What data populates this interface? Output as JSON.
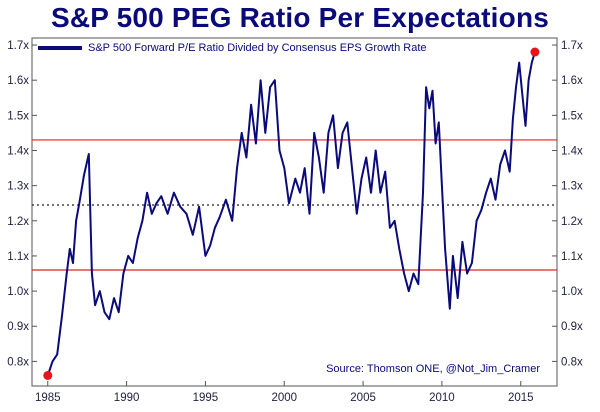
{
  "chart_data": {
    "type": "line",
    "title": "S&P 500 PEG Ratio Per Expectations",
    "legend": [
      "S&P 500 Forward P/E Ratio Divided by Consensus  EPS Growth Rate"
    ],
    "source": "Source: Thomson ONE, @Not_Jim_Cramer",
    "xlim": [
      1984.0,
      2017.3
    ],
    "ylim": [
      0.73,
      1.72
    ],
    "x_ticks": [
      1985,
      1990,
      1995,
      2000,
      2005,
      2010,
      2015
    ],
    "x_tick_labels": [
      "1985",
      "1990",
      "1995",
      "2000",
      "2005",
      "2010",
      "2015"
    ],
    "y_ticks": [
      0.8,
      0.9,
      1.0,
      1.1,
      1.2,
      1.3,
      1.4,
      1.5,
      1.6,
      1.7
    ],
    "y_tick_labels": [
      "0.8x",
      "0.9x",
      "1.0x",
      "1.1x",
      "1.2x",
      "1.3x",
      "1.4x",
      "1.5x",
      "1.6x",
      "1.7x"
    ],
    "reference_lines": [
      {
        "y": 1.43,
        "style": "solid",
        "color": "#e02020"
      },
      {
        "y": 1.245,
        "style": "dotted",
        "color": "#222222"
      },
      {
        "y": 1.06,
        "style": "solid",
        "color": "#e02020"
      }
    ],
    "highlight_points": [
      {
        "x": 1985.0,
        "y": 0.76,
        "color": "#e8141c"
      },
      {
        "x": 2015.9,
        "y": 1.68,
        "color": "#e8141c"
      }
    ],
    "series": [
      {
        "name": "S&P 500 Forward P/E Ratio Divided by Consensus  EPS Growth Rate",
        "color": "#0a0a7a",
        "x": [
          1985.0,
          1985.3,
          1985.6,
          1985.9,
          1986.2,
          1986.4,
          1986.6,
          1986.8,
          1987.0,
          1987.3,
          1987.6,
          1987.8,
          1988.0,
          1988.3,
          1988.6,
          1988.9,
          1989.2,
          1989.5,
          1989.8,
          1990.1,
          1990.4,
          1990.7,
          1991.0,
          1991.3,
          1991.6,
          1991.9,
          1992.2,
          1992.6,
          1993.0,
          1993.4,
          1993.8,
          1994.2,
          1994.6,
          1995.0,
          1995.3,
          1995.6,
          1995.9,
          1996.3,
          1996.7,
          1997.0,
          1997.3,
          1997.6,
          1997.9,
          1998.2,
          1998.5,
          1998.8,
          1999.1,
          1999.4,
          1999.7,
          2000.0,
          2000.3,
          2000.7,
          2001.0,
          2001.3,
          2001.6,
          2001.9,
          2002.2,
          2002.5,
          2002.8,
          2003.1,
          2003.4,
          2003.7,
          2004.0,
          2004.3,
          2004.6,
          2004.9,
          2005.2,
          2005.5,
          2005.8,
          2006.1,
          2006.4,
          2006.7,
          2007.0,
          2007.3,
          2007.6,
          2007.9,
          2008.2,
          2008.5,
          2008.8,
          2009.0,
          2009.2,
          2009.4,
          2009.6,
          2009.8,
          2010.0,
          2010.2,
          2010.5,
          2010.7,
          2011.0,
          2011.3,
          2011.6,
          2011.9,
          2012.2,
          2012.5,
          2012.8,
          2013.1,
          2013.4,
          2013.7,
          2014.0,
          2014.3,
          2014.5,
          2014.7,
          2014.9,
          2015.1,
          2015.3,
          2015.5,
          2015.7,
          2015.9
        ],
        "y": [
          0.76,
          0.8,
          0.82,
          0.93,
          1.05,
          1.12,
          1.08,
          1.2,
          1.25,
          1.33,
          1.39,
          1.05,
          0.96,
          1.0,
          0.94,
          0.92,
          0.98,
          0.94,
          1.05,
          1.1,
          1.08,
          1.15,
          1.2,
          1.28,
          1.22,
          1.25,
          1.27,
          1.22,
          1.28,
          1.24,
          1.22,
          1.16,
          1.24,
          1.1,
          1.13,
          1.18,
          1.21,
          1.26,
          1.2,
          1.35,
          1.45,
          1.38,
          1.53,
          1.42,
          1.6,
          1.45,
          1.58,
          1.6,
          1.4,
          1.35,
          1.25,
          1.32,
          1.28,
          1.35,
          1.22,
          1.45,
          1.38,
          1.28,
          1.45,
          1.5,
          1.35,
          1.45,
          1.48,
          1.35,
          1.22,
          1.32,
          1.38,
          1.28,
          1.4,
          1.28,
          1.34,
          1.18,
          1.2,
          1.12,
          1.05,
          1.0,
          1.05,
          1.02,
          1.28,
          1.58,
          1.52,
          1.57,
          1.42,
          1.48,
          1.3,
          1.12,
          0.95,
          1.1,
          0.98,
          1.14,
          1.05,
          1.08,
          1.2,
          1.23,
          1.28,
          1.32,
          1.26,
          1.36,
          1.4,
          1.34,
          1.49,
          1.58,
          1.65,
          1.56,
          1.47,
          1.6,
          1.65,
          1.68
        ]
      }
    ],
    "grid": false,
    "legend_position": "top-left",
    "source_position": "bottom-right"
  }
}
